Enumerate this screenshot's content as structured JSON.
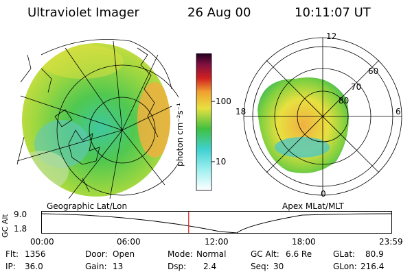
{
  "header": {
    "title": "Ultraviolet Imager",
    "date": "26 Aug 00",
    "time": "10:11:07 UT"
  },
  "left_panel": {
    "label": "Geographic Lat/Lon"
  },
  "right_panel": {
    "label": "Apex MLat/MLT",
    "mlt_labels": [
      "12",
      "18",
      "6",
      "0"
    ],
    "lat_labels": [
      "60",
      "70",
      "80"
    ]
  },
  "colorbar": {
    "unit_label": "photon cm⁻²s⁻¹",
    "ticks": [
      "100",
      "10"
    ]
  },
  "altitude_plot": {
    "axis_label": "GC Alt",
    "y_ticks": [
      "9.0",
      "1.8"
    ],
    "x_ticks": [
      "00:00",
      "06:00",
      "12:00",
      "18:00",
      "23:59"
    ],
    "current_time_fraction": 0.42
  },
  "info": {
    "flt_label": "Flt:",
    "flt_value": "1356",
    "door_label": "Door:",
    "door_value": "Open",
    "mode_label": "Mode:",
    "mode_value": "Normal",
    "gcalt_label": "GC Alt:",
    "gcalt_value": "6.6 Re",
    "glat_label": "GLat:",
    "glat_value": "80.9",
    "ip_label": "IP:",
    "ip_value": "36.0",
    "gain_label": "Gain:",
    "gain_value": "13",
    "dsp_label": "Dsp:",
    "dsp_value": "2.4",
    "seq_label": "Seq:",
    "seq_value": "30",
    "glon_label": "GLon:",
    "glon_value": "216.4"
  },
  "colors": {
    "low": "#ffffff",
    "cyan": "#40d0d0",
    "green": "#40c040",
    "yellow": "#e8e040",
    "orange": "#f0a030",
    "red": "#d02020",
    "dark": "#200020",
    "marker": "#e02020"
  }
}
